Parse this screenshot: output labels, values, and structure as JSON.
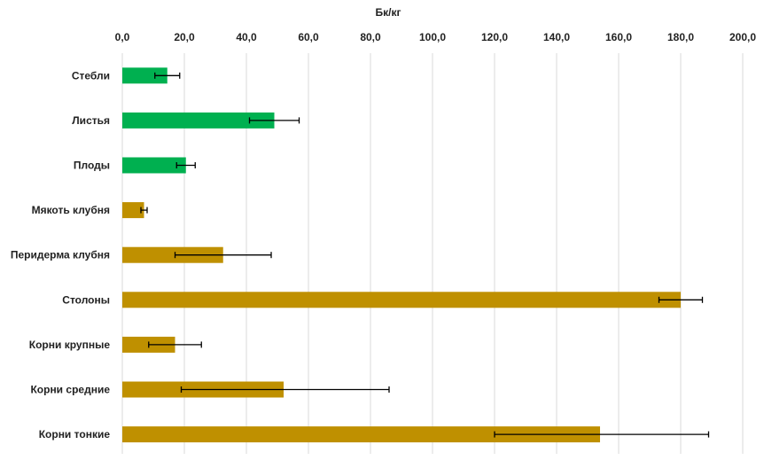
{
  "chart_data": {
    "type": "bar",
    "orientation": "horizontal",
    "xlabel": "Бк/кг",
    "xlim": [
      0,
      200
    ],
    "tick_values": [
      0,
      20,
      40,
      60,
      80,
      100,
      120,
      140,
      160,
      180,
      200
    ],
    "tick_labels": [
      "0,0",
      "20,0",
      "40,0",
      "60,0",
      "80,0",
      "100,0",
      "120,0",
      "140,0",
      "160,0",
      "180,0",
      "200,0"
    ],
    "axis_position": "top",
    "grid": true,
    "legend": "none",
    "categories": [
      "Стебли",
      "Листья",
      "Плоды",
      "Мякоть клубня",
      "Перидерма клубня",
      "Столоны",
      "Корни крупные",
      "Корни средние",
      "Корни тонкие"
    ],
    "values": [
      14.5,
      49.0,
      20.5,
      7.0,
      32.5,
      180.0,
      17.0,
      52.0,
      154.0
    ],
    "error_low": [
      10.5,
      41.0,
      17.5,
      6.0,
      17.0,
      173.0,
      8.5,
      19.0,
      120.0
    ],
    "error_high": [
      18.5,
      57.0,
      23.5,
      8.0,
      48.0,
      187.0,
      25.5,
      86.0,
      189.0
    ],
    "bar_colors": [
      "#00b050",
      "#00b050",
      "#00b050",
      "#bf9000",
      "#bf9000",
      "#bf9000",
      "#bf9000",
      "#bf9000",
      "#bf9000"
    ],
    "colors": {
      "gridline": "#d9d9d9",
      "error_bar": "#000000",
      "text": "#222222"
    }
  }
}
